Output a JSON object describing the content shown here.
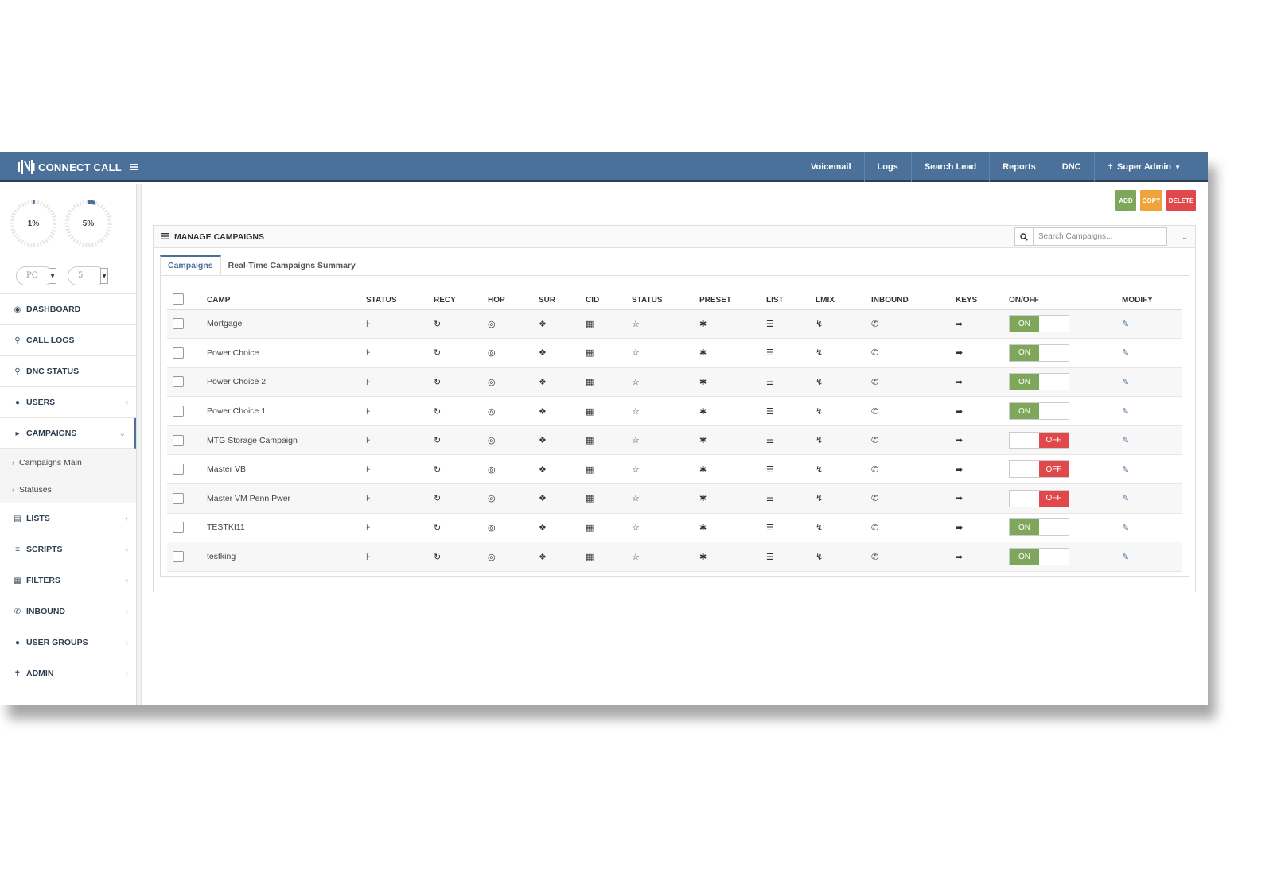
{
  "app": {
    "title": "CONNECT CALL"
  },
  "topnav": [
    {
      "label": "Voicemail"
    },
    {
      "label": "Logs"
    },
    {
      "label": "Search Lead"
    },
    {
      "label": "Reports"
    },
    {
      "label": "DNC"
    },
    {
      "label": "Super Admin"
    }
  ],
  "gauges": [
    {
      "label": "1%",
      "value": 1
    },
    {
      "label": "5%",
      "value": 5
    }
  ],
  "sidebar_selects": [
    {
      "value": "PC"
    },
    {
      "value": "5"
    }
  ],
  "sidebar": {
    "items": [
      {
        "label": "DASHBOARD",
        "icon": "dashboard-icon"
      },
      {
        "label": "CALL LOGS",
        "icon": "search-icon"
      },
      {
        "label": "DNC STATUS",
        "icon": "search-icon"
      },
      {
        "label": "USERS",
        "icon": "user-icon"
      },
      {
        "label": "CAMPAIGNS",
        "icon": "bullhorn-icon"
      },
      {
        "label": "LISTS",
        "icon": "list-icon"
      },
      {
        "label": "SCRIPTS",
        "icon": "script-icon"
      },
      {
        "label": "FILTERS",
        "icon": "filter-icon"
      },
      {
        "label": "INBOUND",
        "icon": "phone-icon"
      },
      {
        "label": "USER GROUPS",
        "icon": "users-icon"
      },
      {
        "label": "ADMIN",
        "icon": "admin-icon"
      }
    ],
    "campaigns_sub": [
      {
        "label": "Campaigns Main"
      },
      {
        "label": "Statuses"
      }
    ]
  },
  "actions": {
    "add": "ADD",
    "copy": "COPY",
    "delete": "DELETE"
  },
  "colors": {
    "topbar": "#4b7099",
    "add": "#7ea75b",
    "copy": "#f0a33a",
    "delete": "#e0484b",
    "on": "#7ea75b",
    "off": "#e0484b"
  },
  "panel": {
    "title": "MANAGE CAMPAIGNS",
    "search_placeholder": "Search Campaigns...",
    "tabs": [
      {
        "label": "Campaigns"
      },
      {
        "label": "Real-Time Campaigns Summary"
      }
    ]
  },
  "table": {
    "columns": [
      "CAMP",
      "STATUS",
      "RECY",
      "HOP",
      "SUR",
      "CID",
      "STATUS",
      "PRESET",
      "LIST",
      "LMIX",
      "INBOUND",
      "KEYS",
      "ON/OFF",
      "MODIFY"
    ],
    "rows": [
      {
        "camp": "Mortgage",
        "state": "ON"
      },
      {
        "camp": "Power Choice",
        "state": "ON"
      },
      {
        "camp": "Power Choice 2",
        "state": "ON"
      },
      {
        "camp": "Power Choice 1",
        "state": "ON"
      },
      {
        "camp": "MTG Storage Campaign",
        "state": "OFF"
      },
      {
        "camp": "Master VB",
        "state": "OFF"
      },
      {
        "camp": "Master VM Penn Pwer",
        "state": "OFF"
      },
      {
        "camp": "TESTKI11",
        "state": "ON"
      },
      {
        "camp": "testking",
        "state": "ON"
      }
    ]
  }
}
